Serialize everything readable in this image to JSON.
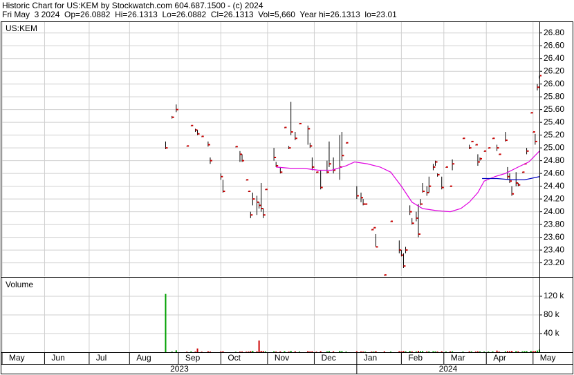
{
  "header": {
    "line1": "Historic Chart for US:KEM by Stockwatch.com 604.687.1500 - (c) 2024",
    "line2": "Fri May  3 2024  Op=26.0882  Hi=26.1313  Lo=26.0882  Cl=26.1313  Vol=5,660  Year hi=26.1313  lo=23.01"
  },
  "chart_data": {
    "type": "ohlc",
    "title": "US:KEM",
    "grid": true,
    "bar_color": "#000000",
    "close_color": "#cc0000",
    "xlim": [
      0,
      253
    ],
    "ylim": [
      22.99,
      26.97
    ],
    "yticks": [
      {
        "value": 23.2,
        "label": "23.20"
      },
      {
        "value": 23.4,
        "label": "23.40"
      },
      {
        "value": 23.6,
        "label": "23.60"
      },
      {
        "value": 23.8,
        "label": "23.80"
      },
      {
        "value": 24.0,
        "label": "24.00"
      },
      {
        "value": 24.2,
        "label": "24.20"
      },
      {
        "value": 24.4,
        "label": "24.40"
      },
      {
        "value": 24.6,
        "label": "24.60"
      },
      {
        "value": 24.8,
        "label": "24.80"
      },
      {
        "value": 25.0,
        "label": "25.00"
      },
      {
        "value": 25.2,
        "label": "25.20"
      },
      {
        "value": 25.4,
        "label": "25.40"
      },
      {
        "value": 25.6,
        "label": "25.60"
      },
      {
        "value": 25.8,
        "label": "25.80"
      },
      {
        "value": 26.0,
        "label": "26.00"
      },
      {
        "value": 26.2,
        "label": "26.20"
      },
      {
        "value": 26.4,
        "label": "26.40"
      },
      {
        "value": 26.6,
        "label": "26.60"
      },
      {
        "value": 26.8,
        "label": "26.80"
      }
    ],
    "xticks": [
      {
        "value": 0,
        "label": "May"
      },
      {
        "value": 20,
        "label": "Jun"
      },
      {
        "value": 41,
        "label": "Jul"
      },
      {
        "value": 60,
        "label": "Aug"
      },
      {
        "value": 83,
        "label": "Sep"
      },
      {
        "value": 103,
        "label": "Oct"
      },
      {
        "value": 125,
        "label": "Nov"
      },
      {
        "value": 147,
        "label": "Dec"
      },
      {
        "value": 167,
        "label": "Jan"
      },
      {
        "value": 188,
        "label": "Feb"
      },
      {
        "value": 208,
        "label": "Mar"
      },
      {
        "value": 228,
        "label": "Apr"
      },
      {
        "value": 250,
        "label": "May"
      }
    ],
    "years": [
      "2023",
      "2024"
    ],
    "x": [
      77,
      80,
      82,
      87,
      89,
      91,
      92,
      94,
      97,
      98,
      103,
      104,
      110,
      112,
      113,
      115,
      116,
      117,
      118,
      120,
      121,
      122,
      123,
      124,
      128,
      129,
      131,
      133,
      135,
      136,
      138,
      140,
      144,
      145,
      146,
      148,
      150,
      153,
      154,
      156,
      159,
      160,
      162,
      167,
      169,
      170,
      171,
      174,
      175,
      176,
      180,
      183,
      187,
      188,
      189,
      190,
      192,
      193,
      195,
      196,
      197,
      198,
      200,
      201,
      203,
      204,
      205,
      207,
      209,
      211,
      212,
      217,
      220,
      221,
      223,
      224,
      225,
      227,
      229,
      231,
      233,
      234,
      237,
      238,
      239,
      240,
      242,
      243,
      245,
      246,
      247,
      249,
      250,
      251,
      252,
      253
    ],
    "high": [
      25.1,
      25.5,
      25.68,
      25.03,
      25.35,
      25.3,
      25.28,
      25.18,
      25.1,
      24.85,
      24.6,
      24.5,
      25.02,
      24.95,
      24.9,
      24.5,
      24.32,
      24.0,
      24.3,
      24.25,
      24.15,
      24.45,
      24.05,
      24.35,
      25.0,
      24.78,
      24.7,
      25.32,
      25.03,
      25.72,
      25.25,
      25.38,
      25.35,
      25.08,
      24.85,
      24.62,
      24.65,
      24.8,
      25.1,
      24.85,
      25.2,
      25.25,
      25.08,
      24.4,
      24.3,
      24.2,
      24.12,
      23.72,
      23.75,
      23.65,
      23.01,
      23.85,
      23.55,
      23.4,
      23.35,
      23.45,
      24.1,
      23.9,
      24.0,
      24.12,
      24.2,
      24.45,
      24.4,
      24.55,
      24.75,
      24.8,
      24.6,
      24.55,
      24.7,
      24.4,
      24.82,
      25.15,
      25.05,
      25.1,
      25.05,
      24.9,
      24.85,
      24.95,
      25.0,
      25.15,
      25.05,
      24.9,
      25.25,
      24.7,
      24.6,
      24.4,
      24.62,
      24.45,
      24.62,
      24.75,
      25.0,
      25.55,
      25.25,
      25.22,
      26.0,
      26.1313
    ],
    "low": [
      24.98,
      25.46,
      25.56,
      25.03,
      25.35,
      25.25,
      25.2,
      25.18,
      25.02,
      24.75,
      24.5,
      24.3,
      25.02,
      24.78,
      24.78,
      24.5,
      24.32,
      23.9,
      24.1,
      23.95,
      24.05,
      24.0,
      23.9,
      24.35,
      24.8,
      24.7,
      24.6,
      25.32,
      24.98,
      25.2,
      25.12,
      25.38,
      25.05,
      25.0,
      24.65,
      24.62,
      24.35,
      24.6,
      24.7,
      24.6,
      24.5,
      24.8,
      25.08,
      24.2,
      24.15,
      24.1,
      24.12,
      23.72,
      23.75,
      23.45,
      23.01,
      23.85,
      23.35,
      23.3,
      23.12,
      23.35,
      23.95,
      23.8,
      23.85,
      23.6,
      24.1,
      24.3,
      24.25,
      24.3,
      24.65,
      24.72,
      24.55,
      24.35,
      24.7,
      24.4,
      24.65,
      25.15,
      24.98,
      25.1,
      25.05,
      24.72,
      24.8,
      24.95,
      25.0,
      25.15,
      24.95,
      24.9,
      25.1,
      24.5,
      24.45,
      24.25,
      24.4,
      24.4,
      24.62,
      24.75,
      24.9,
      25.55,
      25.25,
      25.05,
      25.9,
      26.0882
    ],
    "close": [
      25.0,
      25.48,
      25.6,
      25.03,
      25.35,
      25.28,
      25.22,
      25.18,
      25.05,
      24.8,
      24.55,
      24.32,
      25.02,
      24.9,
      24.8,
      24.5,
      24.32,
      23.95,
      24.2,
      24.15,
      24.1,
      24.05,
      23.95,
      24.35,
      24.85,
      24.72,
      24.62,
      25.32,
      25.0,
      25.25,
      25.15,
      25.38,
      25.3,
      25.03,
      24.7,
      24.62,
      24.38,
      24.62,
      24.75,
      24.65,
      24.7,
      24.88,
      25.08,
      24.25,
      24.22,
      24.12,
      24.12,
      23.72,
      23.75,
      23.45,
      23.01,
      23.85,
      23.4,
      23.32,
      23.15,
      23.4,
      24.0,
      23.82,
      23.9,
      23.65,
      24.12,
      24.32,
      24.3,
      24.4,
      24.7,
      24.78,
      24.58,
      24.38,
      24.7,
      24.4,
      24.75,
      25.15,
      25.0,
      25.1,
      25.05,
      24.78,
      24.83,
      24.95,
      25.0,
      25.15,
      25.0,
      24.9,
      25.12,
      24.55,
      24.48,
      24.28,
      24.45,
      24.42,
      24.62,
      24.75,
      24.95,
      25.55,
      25.25,
      25.1,
      25.95,
      26.1313
    ],
    "series": [
      {
        "color": "#e000e0",
        "x": [
          129,
          136,
          142,
          149,
          155,
          162,
          166,
          172,
          178,
          183,
          188,
          193,
          198,
          204,
          211,
          216,
          220,
          224,
          227,
          232,
          237,
          243,
          248,
          253
        ],
        "values": [
          24.7,
          24.68,
          24.68,
          24.65,
          24.65,
          24.72,
          24.78,
          24.75,
          24.7,
          24.62,
          24.4,
          24.15,
          24.05,
          24.02,
          24.0,
          24.05,
          24.15,
          24.3,
          24.48,
          24.55,
          24.6,
          24.7,
          24.78,
          24.95
        ]
      },
      {
        "color": "#0000c0",
        "x": [
          226,
          233,
          240,
          246,
          253
        ],
        "values": [
          24.52,
          24.52,
          24.5,
          24.5,
          24.55
        ]
      }
    ],
    "volume": {
      "title": "Volume",
      "up_color": "#00a000",
      "down_color": "#cc0000",
      "ylim": [
        0,
        160000
      ],
      "yticks": [
        {
          "value": 40000,
          "label": "40 k"
        },
        {
          "value": 80000,
          "label": "80 k"
        },
        {
          "value": 120000,
          "label": "120 k"
        }
      ],
      "values": [
        125000,
        1500,
        4000,
        1200,
        1800,
        1500,
        8000,
        1200,
        2000,
        1500,
        1800,
        2200,
        1000,
        1500,
        1600,
        1200,
        1400,
        2500,
        3000,
        2000,
        25000,
        3000,
        2500,
        1800,
        2000,
        1500,
        1800,
        2200,
        1500,
        3000,
        2000,
        1500,
        2500,
        1800,
        2000,
        1200,
        2200,
        1800,
        2500,
        2000,
        3000,
        2500,
        1500,
        2000,
        1800,
        1500,
        1200,
        1500,
        1400,
        2500,
        2000,
        1500,
        2200,
        1800,
        2500,
        2000,
        2800,
        2000,
        1800,
        3000,
        2200,
        2500,
        1800,
        2000,
        2200,
        1800,
        1500,
        2000,
        1500,
        1800,
        2200,
        1500,
        2000,
        1800,
        1500,
        2000,
        1800,
        1500,
        1500,
        1800,
        3500,
        1500,
        2000,
        2500,
        2200,
        2800,
        2500,
        2000,
        1800,
        2200,
        2500,
        3000,
        2500,
        2800,
        3500,
        5660
      ]
    }
  }
}
